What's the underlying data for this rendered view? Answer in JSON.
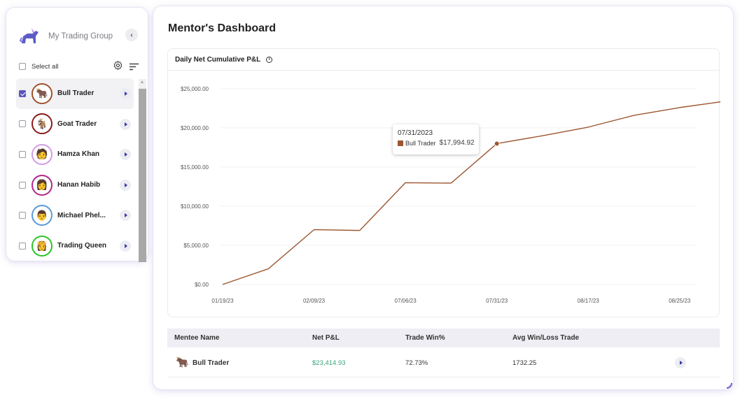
{
  "sidebar": {
    "group_name": "My Trading Group",
    "select_all_label": "Select all",
    "traders": [
      {
        "name": "Bull Trader",
        "checked": true,
        "ring": "#a0522d",
        "icon": "bull-avatar-icon",
        "glyph": "🐂"
      },
      {
        "name": "Goat Trader",
        "checked": false,
        "ring": "#8b1a1a",
        "icon": "goat-avatar-icon",
        "glyph": "🐐"
      },
      {
        "name": "Hamza Khan",
        "checked": false,
        "ring": "#d39be8",
        "icon": "person-avatar-icon",
        "glyph": "🧑"
      },
      {
        "name": "Hanan Habib",
        "checked": false,
        "ring": "#b0288a",
        "icon": "person-avatar-icon",
        "glyph": "👩"
      },
      {
        "name": "Michael Phel...",
        "checked": false,
        "ring": "#5b9bd5",
        "icon": "person-avatar-icon",
        "glyph": "👨"
      },
      {
        "name": "Trading Queen",
        "checked": false,
        "ring": "#2bc42b",
        "icon": "queen-avatar-icon",
        "glyph": "👸"
      }
    ]
  },
  "main": {
    "title": "Mentor's Dashboard",
    "chart_title": "Daily Net Cumulative P&L",
    "tooltip": {
      "date": "07/31/2023",
      "series": "Bull Trader",
      "value": "$17,994.92"
    },
    "table": {
      "headers": [
        "Mentee Name",
        "Net P&L",
        "Trade Win%",
        "Avg Win/Loss Trade"
      ],
      "rows": [
        {
          "name": "Bull Trader",
          "net_pl": "$23,414.93",
          "win_pct": "72.73%",
          "avg": "1732.25"
        }
      ]
    }
  },
  "colors": {
    "accent": "#5a56b8",
    "line": "#9c5630",
    "positive": "#3aa37a"
  },
  "chart_data": {
    "type": "line",
    "title": "Daily Net Cumulative P&L",
    "xlabel": "",
    "ylabel": "",
    "x_ticks": [
      "01/19/23",
      "02/09/23",
      "07/06/23",
      "07/31/23",
      "08/17/23",
      "08/25/23"
    ],
    "y_ticks": [
      "$25,000.00",
      "$20,000.00",
      "$15,000.00",
      "$10,000.00",
      "$5,000.00",
      "$0.00"
    ],
    "ylim": [
      0,
      25000
    ],
    "grid": true,
    "series": [
      {
        "name": "Bull Trader",
        "x_index": [
          0,
          0.5,
          1,
          1.5,
          2,
          2.5,
          3,
          3.5,
          4,
          4.5,
          5,
          5.5
        ],
        "values": [
          0,
          2000,
          7000,
          6900,
          13000,
          12950,
          17994.92,
          19000,
          20100,
          21600,
          22600,
          23414.93
        ]
      }
    ]
  }
}
